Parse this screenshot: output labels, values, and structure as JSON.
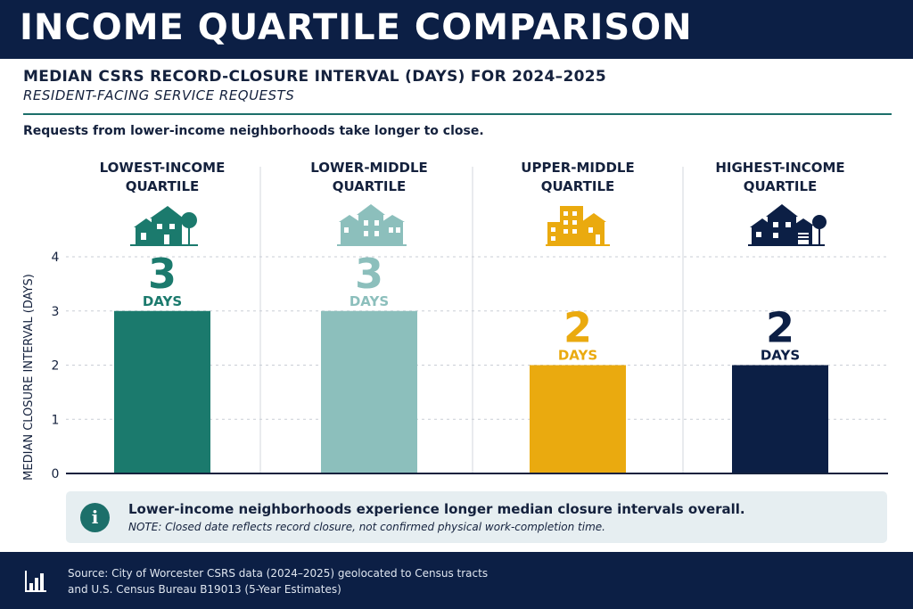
{
  "title": "INCOME QUARTILE COMPARISON",
  "subtitle": "MEDIAN CSRS RECORD-CLOSURE INTERVAL (DAYS) FOR 2024–2025",
  "subtitle2": "RESIDENT-FACING SERVICE REQUESTS",
  "lead": "Requests from lower-income neighborhoods take longer to close.",
  "chart_data": {
    "type": "bar",
    "categories": [
      "LOWEST-INCOME QUARTILE",
      "LOWER-MIDDLE QUARTILE",
      "UPPER-MIDDLE QUARTILE",
      "HIGHEST-INCOME QUARTILE"
    ],
    "category_lines": [
      [
        "LOWEST-INCOME",
        "QUARTILE"
      ],
      [
        "LOWER-MIDDLE",
        "QUARTILE"
      ],
      [
        "UPPER-MIDDLE",
        "QUARTILE"
      ],
      [
        "HIGHEST-INCOME",
        "QUARTILE"
      ]
    ],
    "values": [
      3,
      3,
      2,
      2
    ],
    "value_labels": [
      "3",
      "3",
      "2",
      "2"
    ],
    "unit_label": "DAYS",
    "colors": [
      "#1b7a6d",
      "#8cbfbc",
      "#eaaa0f",
      "#0c1f45"
    ],
    "icons": [
      "house-tree-icon",
      "row-houses-icon",
      "apartment-house-icon",
      "suburban-house-icon"
    ],
    "ylabel": "MEDIAN CLOSURE INTERVAL (DAYS)",
    "yticks": [
      "0",
      "1",
      "2",
      "3",
      "4"
    ],
    "ylim": [
      0,
      4
    ],
    "grid": true
  },
  "info": {
    "icon": "info-icon",
    "main": "Lower-income neighborhoods experience longer median closure intervals overall.",
    "note": "NOTE: Closed date reflects record closure, not confirmed physical work-completion time."
  },
  "footer": {
    "icon": "bar-chart-icon",
    "line1": "Source: City of Worcester CSRS data (2024–2025) geolocated to Census tracts",
    "line2": "and U.S. Census Bureau B19013 (5-Year Estimates)"
  }
}
